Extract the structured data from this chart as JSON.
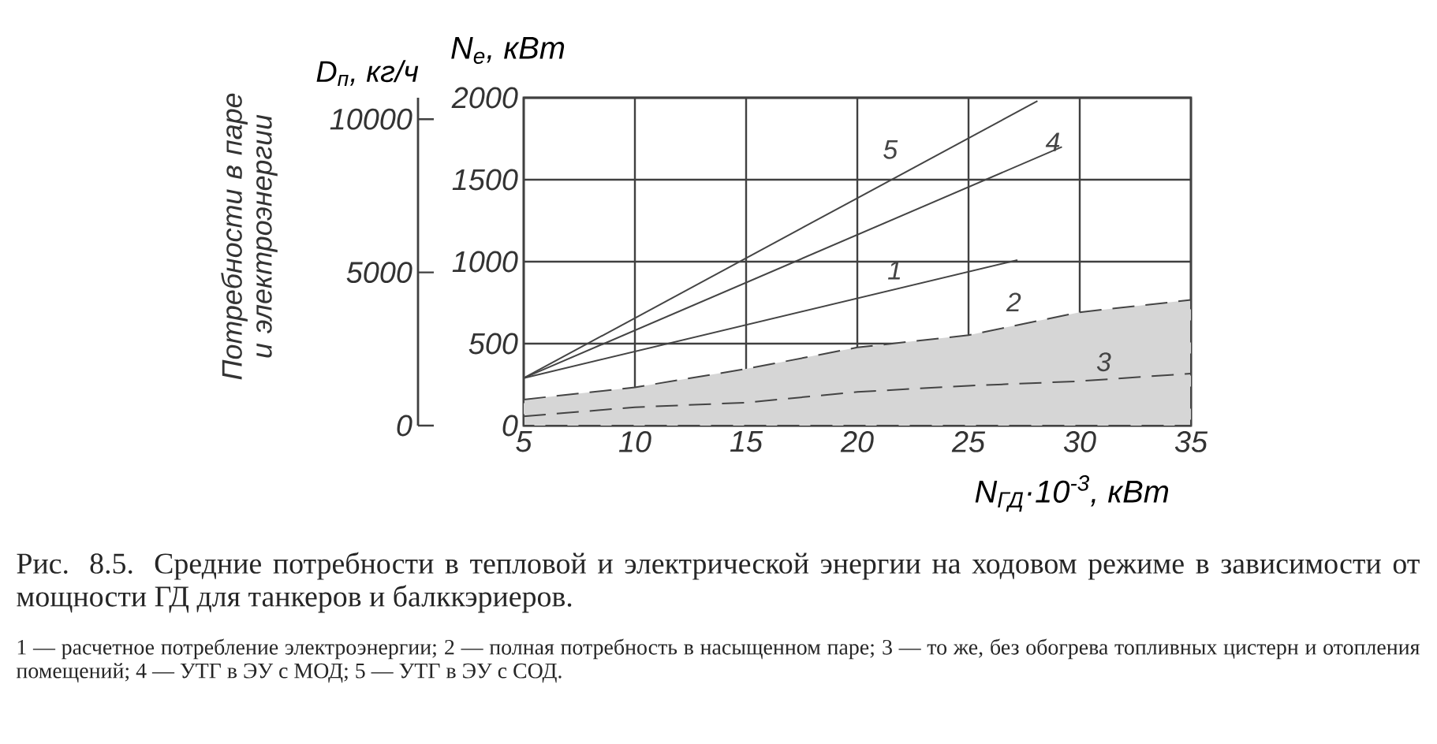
{
  "chart_data": {
    "type": "line",
    "title": "Рис. 8.5. Средние потребности в тепловой и электрической энергии на ходовом режиме в зависимости от мощности ГД для танкеров и балккэриеров.",
    "xlabel": "N$_{ГД}$·10$^{-3}$, кВт",
    "ylabel": "N$_{e}$, кВт",
    "y2label": "D$_{п}$, кг/ч",
    "annotations": [
      "Потребности в паре и электроэнергии",
      "1 — расчетное потребление электроэнергии; 2 — полная потребность в насыщенном паре; 3 — то же, без обогрева топливных цистерн и отопления помещений; 4 — УТГ в ЭУ с МОД; 5 — УТГ в ЭУ с СОД."
    ],
    "xlim": [
      5,
      35
    ],
    "xticks": [
      5,
      10,
      15,
      20,
      25,
      30,
      35
    ],
    "ylim": [
      0,
      2000
    ],
    "yticks": [
      0,
      500,
      1000,
      1500,
      2000
    ],
    "y2lim": [
      0,
      10700
    ],
    "y2ticks": [
      0,
      5000,
      10000
    ],
    "grid": true,
    "series": [
      {
        "name": "1",
        "color": "#444444",
        "x": [
          5,
          27.2
        ],
        "values": [
          290,
          1010
        ]
      },
      {
        "name": "2",
        "type": "area",
        "axis": "y2",
        "line_style": "dashed",
        "color": "#444444",
        "x": [
          5,
          10,
          15,
          20,
          25,
          30,
          35
        ],
        "values": [
          850,
          1250,
          1850,
          2550,
          2950,
          3700,
          4100
        ]
      },
      {
        "name": "3",
        "axis": "y2",
        "line_style": "dashed",
        "color": "#444444",
        "x": [
          5,
          10,
          15,
          20,
          25,
          30,
          35
        ],
        "values": [
          300,
          600,
          750,
          1100,
          1300,
          1450,
          1700
        ]
      },
      {
        "name": "4",
        "color": "#444444",
        "x": [
          5,
          29.2
        ],
        "values": [
          290,
          1700
        ]
      },
      {
        "name": "5",
        "color": "#444444",
        "x": [
          5,
          28.1
        ],
        "values": [
          290,
          1980
        ]
      }
    ]
  }
}
